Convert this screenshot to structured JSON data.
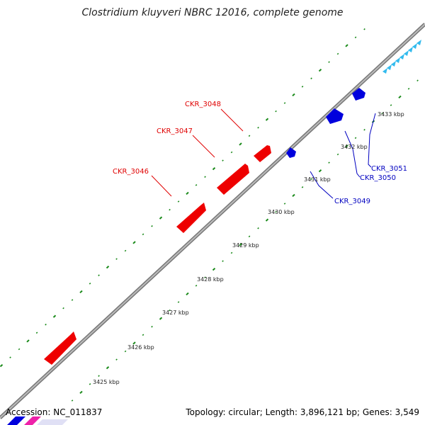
{
  "title": "Clostridium kluyveri NBRC 12016, complete genome",
  "footer": {
    "accession": "Accession: NC_011837",
    "summary": "Topology: circular; Length: 3,896,121 bp; Genes: 3,549"
  },
  "ticks": [
    {
      "label": "3425 kbp"
    },
    {
      "label": "3426 kbp"
    },
    {
      "label": "3427 kbp"
    },
    {
      "label": "3428 kbp"
    },
    {
      "label": "3429 kbp"
    },
    {
      "label": "3430 kbp"
    },
    {
      "label": "3431 kbp"
    },
    {
      "label": "3432 kbp"
    },
    {
      "label": "3433 kbp"
    }
  ],
  "genes_forward": [
    {
      "name": "CKR_3046"
    },
    {
      "name": "CKR_3047"
    },
    {
      "name": "CKR_3048"
    }
  ],
  "genes_reverse": [
    {
      "name": "CKR_3049"
    },
    {
      "name": "CKR_3050"
    },
    {
      "name": "CKR_3051"
    }
  ],
  "colors": {
    "forward_gene": "#ee0000",
    "reverse_gene": "#0000dd",
    "backbone": "#888888",
    "gc_dots": "#1a8a1a",
    "cyan_features": "#33bbee"
  }
}
